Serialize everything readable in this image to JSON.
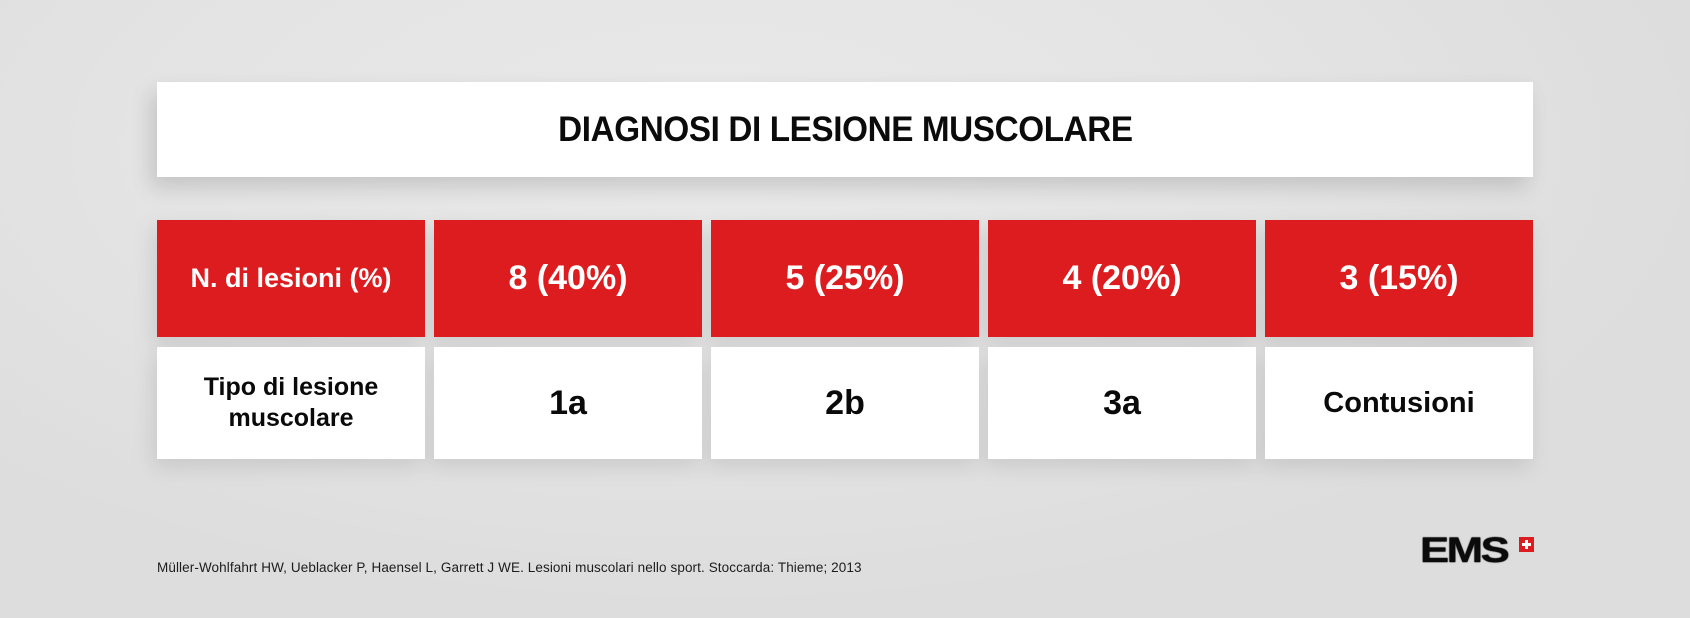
{
  "header": {
    "title": "DIAGNOSI DI LESIONE MUSCOLARE"
  },
  "chart_data": {
    "type": "table",
    "title": "DIAGNOSI DI LESIONE MUSCOLARE",
    "row_labels": [
      "N. di lesioni (%)",
      "Tipo di lesione muscolare"
    ],
    "rows": [
      [
        "8 (40%)",
        "5 (25%)",
        "4 (20%)",
        "3 (15%)"
      ],
      [
        "1a",
        "2b",
        "3a",
        "Contusioni"
      ]
    ],
    "records": [
      {
        "tipo_lesione": "1a",
        "n_lesioni": 8,
        "percent": 40
      },
      {
        "tipo_lesione": "2b",
        "n_lesioni": 5,
        "percent": 25
      },
      {
        "tipo_lesione": "3a",
        "n_lesioni": 4,
        "percent": 20
      },
      {
        "tipo_lesione": "Contusioni",
        "n_lesioni": 3,
        "percent": 15
      }
    ],
    "source": "Müller-Wohlfahrt HW, Ueblacker P, Haensel L, Garrett J WE. Lesioni muscolari nello sport. Stoccarda: Thieme; 2013"
  },
  "footer": {
    "citation": "Müller-Wohlfahrt HW, Ueblacker P, Haensel L, Garrett J WE. Lesioni muscolari nello sport. Stoccarda: Thieme; 2013",
    "logo_text": "EMS",
    "logo_icon": "swiss-cross-plus-icon"
  },
  "colors": {
    "accent_red": "#dc1c1e",
    "background_gray": "#e4e4e4",
    "card_white": "#ffffff",
    "text_black": "#0b0b0b"
  }
}
